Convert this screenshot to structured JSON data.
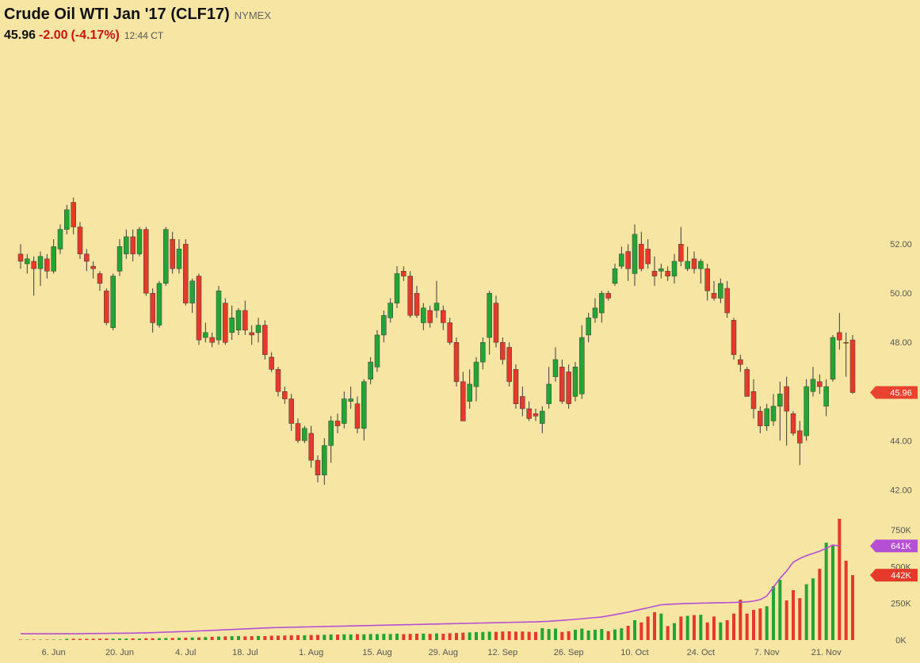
{
  "header": {
    "title": "Crude Oil WTI Jan '17 (CLF17)",
    "exchange": "NYMEX",
    "last": "45.96",
    "change": "-2.00",
    "change_pct": "(-4.17%)",
    "time": "12:44 CT"
  },
  "chart_data": {
    "type": "candlestick",
    "categories": [
      null,
      null,
      null,
      null,
      null,
      "6. Jun",
      null,
      null,
      null,
      null,
      null,
      null,
      null,
      null,
      null,
      "20. Jun",
      null,
      null,
      null,
      null,
      null,
      null,
      null,
      null,
      null,
      "4. Jul",
      null,
      null,
      null,
      null,
      null,
      null,
      null,
      null,
      "18. Jul",
      null,
      null,
      null,
      null,
      null,
      null,
      null,
      null,
      null,
      "1. Aug",
      null,
      null,
      null,
      null,
      null,
      null,
      null,
      null,
      null,
      "15. Aug",
      null,
      null,
      null,
      null,
      null,
      null,
      null,
      null,
      null,
      "29. Aug",
      null,
      null,
      null,
      null,
      null,
      null,
      null,
      null,
      "12. Sep",
      null,
      null,
      null,
      null,
      null,
      null,
      null,
      null,
      null,
      "26. Sep",
      null,
      null,
      null,
      null,
      null,
      null,
      null,
      null,
      null,
      "10. Oct",
      null,
      null,
      null,
      null,
      null,
      null,
      null,
      null,
      null,
      "24. Oct",
      null,
      null,
      null,
      null,
      null,
      null,
      null,
      null,
      null,
      "7. Nov",
      null,
      null,
      null,
      null,
      null,
      null,
      null,
      null,
      "21. Nov",
      null,
      null,
      null,
      null
    ],
    "open": [
      51.6,
      51.2,
      51.3,
      51.0,
      51.4,
      50.9,
      51.8,
      52.6,
      53.7,
      52.7,
      51.6,
      51.1,
      50.8,
      50.1,
      48.6,
      50.9,
      51.6,
      52.3,
      51.6,
      52.6,
      50.0,
      48.7,
      50.4,
      52.2,
      51.0,
      52.0,
      49.6,
      50.7,
      48.2,
      48.2,
      48.1,
      49.6,
      48.4,
      48.5,
      49.3,
      48.4,
      48.4,
      48.7,
      47.4,
      46.9,
      46.0,
      45.7,
      44.7,
      44.0,
      44.3,
      43.2,
      42.6,
      43.8,
      44.8,
      44.7,
      45.6,
      45.5,
      44.5,
      46.5,
      47.0,
      48.3,
      49.0,
      49.6,
      50.9,
      50.7,
      50.0,
      48.8,
      49.3,
      49.3,
      49.3,
      48.8,
      48.0,
      46.4,
      45.6,
      46.2,
      47.2,
      48.2,
      49.6,
      48.0,
      47.8,
      46.9,
      45.8,
      45.3,
      45.1,
      44.7,
      45.5,
      46.6,
      47.0,
      46.8,
      45.8,
      45.9,
      48.3,
      49.0,
      49.2,
      50.0,
      50.4,
      51.1,
      51.7,
      50.8,
      52.0,
      51.8,
      50.9,
      50.9,
      50.9,
      50.7,
      52.0,
      51.0,
      51.4,
      51.0,
      51.0,
      50.0,
      49.8,
      50.2,
      48.9,
      47.3,
      46.9,
      46.0,
      45.2,
      44.6,
      44.8,
      45.4,
      46.2,
      45.1,
      44.4,
      44.2,
      46.0,
      46.4,
      45.4,
      46.5,
      48.4,
      48.0,
      48.1
    ],
    "high": [
      52.0,
      51.6,
      51.5,
      51.7,
      51.6,
      52.2,
      52.8,
      53.6,
      53.9,
      52.9,
      51.8,
      51.3,
      50.9,
      50.2,
      50.8,
      52.2,
      52.6,
      52.6,
      52.7,
      52.7,
      50.2,
      50.5,
      52.7,
      52.5,
      52.2,
      52.2,
      50.6,
      50.8,
      48.8,
      48.4,
      50.3,
      49.8,
      49.5,
      49.4,
      49.7,
      48.7,
      49.0,
      48.9,
      47.6,
      47.0,
      46.2,
      45.9,
      44.9,
      44.6,
      44.6,
      43.4,
      44.1,
      45.0,
      45.1,
      46.0,
      46.2,
      45.8,
      46.5,
      47.4,
      48.5,
      49.3,
      49.8,
      51.1,
      51.1,
      50.9,
      50.3,
      49.6,
      49.5,
      50.5,
      49.5,
      49.0,
      48.2,
      46.8,
      46.9,
      47.4,
      48.2,
      50.1,
      49.9,
      48.2,
      48.0,
      47.1,
      46.2,
      45.6,
      45.3,
      45.4,
      47.0,
      47.8,
      47.3,
      47.1,
      47.2,
      48.7,
      49.2,
      49.8,
      50.1,
      50.1,
      51.2,
      51.9,
      52.0,
      52.8,
      52.5,
      52.2,
      51.5,
      51.2,
      51.1,
      51.6,
      52.7,
      51.9,
      51.7,
      51.4,
      51.2,
      50.5,
      50.6,
      50.5,
      49.0,
      47.5,
      47.0,
      46.5,
      45.4,
      45.5,
      45.9,
      46.4,
      46.6,
      45.2,
      44.8,
      46.5,
      47.0,
      46.7,
      46.5,
      48.3,
      49.2,
      48.4,
      48.3
    ],
    "low": [
      51.0,
      50.8,
      49.9,
      50.3,
      50.6,
      50.8,
      51.6,
      52.4,
      52.4,
      51.4,
      50.9,
      50.6,
      50.1,
      48.7,
      48.5,
      50.7,
      51.4,
      51.3,
      51.5,
      49.9,
      48.4,
      48.6,
      50.3,
      50.8,
      50.8,
      49.5,
      49.2,
      47.9,
      48.0,
      47.8,
      47.9,
      47.9,
      48.1,
      48.3,
      48.3,
      47.9,
      48.0,
      47.3,
      46.8,
      45.8,
      45.5,
      44.4,
      43.9,
      43.9,
      42.9,
      42.3,
      42.2,
      43.1,
      44.3,
      44.5,
      45.3,
      44.3,
      44.0,
      46.3,
      46.8,
      48.0,
      48.8,
      49.4,
      50.5,
      49.0,
      49.0,
      48.5,
      48.6,
      49.0,
      48.5,
      47.9,
      46.2,
      44.8,
      45.3,
      45.6,
      46.9,
      47.5,
      47.8,
      47.1,
      46.2,
      45.3,
      45.0,
      44.8,
      44.8,
      44.3,
      45.3,
      46.4,
      45.5,
      45.3,
      45.6,
      45.7,
      48.0,
      48.8,
      48.8,
      49.7,
      50.3,
      51.0,
      50.5,
      50.3,
      50.9,
      51.0,
      50.3,
      50.6,
      50.5,
      50.4,
      51.1,
      50.9,
      50.8,
      50.4,
      49.7,
      49.7,
      49.6,
      49.0,
      47.3,
      46.8,
      45.8,
      44.9,
      44.3,
      44.4,
      44.6,
      44.0,
      43.8,
      44.2,
      43.0,
      44.0,
      45.8,
      45.9,
      45.0,
      46.4,
      47.7,
      46.6,
      45.9
    ],
    "close": [
      51.3,
      51.4,
      51.0,
      51.5,
      50.9,
      51.9,
      52.6,
      53.4,
      52.7,
      51.6,
      51.3,
      51.0,
      50.4,
      48.8,
      50.7,
      51.9,
      52.3,
      51.6,
      52.6,
      50.0,
      48.8,
      50.4,
      52.6,
      51.0,
      51.8,
      49.6,
      50.5,
      48.1,
      48.4,
      48.0,
      50.1,
      48.0,
      49.0,
      49.3,
      48.5,
      48.3,
      48.7,
      47.5,
      46.9,
      46.0,
      45.7,
      44.7,
      44.0,
      44.5,
      43.2,
      42.6,
      43.8,
      44.8,
      44.6,
      45.7,
      45.7,
      44.5,
      46.4,
      47.2,
      48.3,
      49.1,
      49.6,
      50.8,
      50.7,
      49.1,
      49.1,
      49.4,
      48.8,
      49.6,
      48.8,
      48.0,
      46.4,
      44.8,
      46.3,
      47.2,
      48.0,
      50.0,
      48.0,
      47.3,
      46.4,
      45.5,
      45.3,
      44.9,
      45.0,
      45.2,
      46.3,
      47.3,
      45.6,
      45.5,
      47.0,
      48.2,
      49.0,
      49.4,
      50.0,
      49.8,
      51.0,
      51.6,
      51.0,
      52.4,
      51.0,
      51.2,
      50.7,
      51.0,
      50.7,
      51.3,
      51.3,
      51.3,
      51.0,
      51.3,
      50.1,
      49.8,
      50.4,
      49.2,
      47.5,
      47.1,
      45.8,
      45.3,
      44.6,
      45.3,
      45.4,
      45.9,
      45.2,
      44.3,
      43.9,
      46.2,
      46.5,
      46.2,
      46.2,
      48.2,
      48.1,
      48.0,
      45.96
    ],
    "up_color": "#22a535",
    "down_color": "#e5392a",
    "label_color": "#e8432e",
    "ylim": [
      41.3,
      60.65
    ],
    "yticks": [
      {
        "value": 42,
        "label": "42.00"
      },
      {
        "value": 44,
        "label": "44.00"
      },
      {
        "value": 46,
        "label": "46.00"
      },
      {
        "value": 48,
        "label": "48.00"
      },
      {
        "value": 50,
        "label": "50.00"
      },
      {
        "value": 52,
        "label": "52.00"
      }
    ],
    "volume": {
      "values": [
        3000,
        3000,
        3000,
        3000,
        3000,
        3000,
        3000,
        8000,
        9000,
        8000,
        8000,
        9000,
        9000,
        10000,
        9000,
        10000,
        10000,
        11000,
        10000,
        12000,
        12000,
        13000,
        14000,
        14000,
        15000,
        16000,
        17000,
        18000,
        20000,
        22000,
        24000,
        25000,
        26000,
        27000,
        25000,
        26000,
        28000,
        27000,
        29000,
        30000,
        31000,
        32000,
        33000,
        32000,
        34000,
        35000,
        36000,
        38000,
        37000,
        39000,
        38000,
        40000,
        39000,
        41000,
        40000,
        42000,
        41000,
        43000,
        40000,
        42000,
        43000,
        44000,
        42000,
        45000,
        43000,
        46000,
        48000,
        50000,
        52000,
        54000,
        55000,
        57000,
        56000,
        58000,
        59000,
        57000,
        58000,
        56000,
        55000,
        81000,
        75000,
        78000,
        55000,
        60000,
        70000,
        78000,
        65000,
        70000,
        75000,
        60000,
        72000,
        80000,
        97000,
        135000,
        120000,
        160000,
        190000,
        180000,
        95000,
        115000,
        160000,
        165000,
        170000,
        172000,
        120000,
        160000,
        120000,
        135000,
        180000,
        275000,
        180000,
        205000,
        215000,
        230000,
        367000,
        410000,
        270000,
        340000,
        285000,
        380000,
        420000,
        485000,
        663000,
        650000,
        826000,
        540000,
        442000
      ],
      "value_labels": [
        null,
        null,
        null,
        null,
        null,
        null,
        null,
        null,
        null,
        null,
        null,
        null,
        null,
        null,
        null,
        null,
        null,
        null,
        null,
        null,
        null,
        null,
        null,
        null,
        null,
        null,
        null,
        null,
        null,
        null,
        null,
        null,
        null,
        null,
        null,
        null,
        null,
        null,
        null,
        null,
        null,
        null,
        null,
        null,
        null,
        null,
        null,
        null,
        null,
        null,
        null,
        null,
        null,
        null,
        null,
        null,
        null,
        null,
        null,
        null,
        null,
        null,
        null,
        null,
        null,
        null,
        null,
        null,
        null,
        null,
        null,
        null,
        null,
        null,
        null,
        null,
        null,
        null,
        null,
        null,
        null,
        null,
        null,
        null,
        null,
        null,
        null,
        null,
        null,
        null,
        null,
        null,
        null,
        null,
        null,
        null,
        null,
        null,
        null,
        null,
        null,
        null,
        null,
        null,
        null,
        null,
        null,
        null,
        null,
        null,
        null,
        null,
        null,
        null,
        null,
        null,
        null,
        null,
        null,
        null,
        null,
        null,
        null,
        null,
        null,
        null,
        "442K"
      ],
      "ylim": [
        0,
        852500
      ],
      "yticks": [
        {
          "value": 0,
          "label": "0K"
        },
        {
          "value": 250000,
          "label": "250K"
        },
        {
          "value": 500000,
          "label": "500K"
        },
        {
          "value": 750000,
          "label": "750K"
        }
      ]
    },
    "volume_ma": {
      "color": "#b54fd3",
      "values": [
        43000,
        43000,
        43000,
        43000,
        43000,
        43000,
        43000,
        43000,
        43000,
        43000,
        44000,
        44000,
        45000,
        45000,
        46000,
        46000,
        47000,
        47000,
        48000,
        49000,
        50000,
        52000,
        54000,
        55000,
        57000,
        58000,
        60000,
        62000,
        64000,
        66000,
        68000,
        70000,
        72000,
        74000,
        76000,
        78000,
        80000,
        82000,
        84000,
        85000,
        86000,
        87000,
        88000,
        89000,
        90000,
        91000,
        92000,
        93000,
        94000,
        95000,
        96000,
        97000,
        98000,
        99000,
        100000,
        101000,
        102000,
        103000,
        104000,
        105000,
        106000,
        107000,
        108000,
        109000,
        110000,
        111000,
        112000,
        113000,
        114000,
        115000,
        116000,
        117000,
        118000,
        119000,
        120000,
        121000,
        122000,
        123000,
        124000,
        126000,
        128000,
        131000,
        134000,
        137000,
        141000,
        145000,
        149000,
        153000,
        157000,
        165000,
        173000,
        181000,
        190000,
        200000,
        210000,
        220000,
        230000,
        240000,
        243000,
        245000,
        247000,
        249000,
        250000,
        251000,
        252000,
        253000,
        254000,
        255000,
        256000,
        258000,
        260000,
        265000,
        275000,
        300000,
        360000,
        420000,
        470000,
        530000,
        555000,
        575000,
        590000,
        605000,
        625000,
        647000,
        641000,
        null,
        null
      ],
      "value_labels": [
        null,
        null,
        null,
        null,
        null,
        null,
        null,
        null,
        null,
        null,
        null,
        null,
        null,
        null,
        null,
        null,
        null,
        null,
        null,
        null,
        null,
        null,
        null,
        null,
        null,
        null,
        null,
        null,
        null,
        null,
        null,
        null,
        null,
        null,
        null,
        null,
        null,
        null,
        null,
        null,
        null,
        null,
        null,
        null,
        null,
        null,
        null,
        null,
        null,
        null,
        null,
        null,
        null,
        null,
        null,
        null,
        null,
        null,
        null,
        null,
        null,
        null,
        null,
        null,
        null,
        null,
        null,
        null,
        null,
        null,
        null,
        null,
        null,
        null,
        null,
        null,
        null,
        null,
        null,
        null,
        null,
        null,
        null,
        null,
        null,
        null,
        null,
        null,
        null,
        null,
        null,
        null,
        null,
        null,
        null,
        null,
        null,
        null,
        null,
        null,
        null,
        null,
        null,
        null,
        null,
        null,
        null,
        null,
        null,
        null,
        null,
        null,
        null,
        null,
        null,
        null,
        null,
        null,
        null,
        null,
        null,
        null,
        null,
        null,
        "641K",
        null,
        null
      ]
    }
  }
}
